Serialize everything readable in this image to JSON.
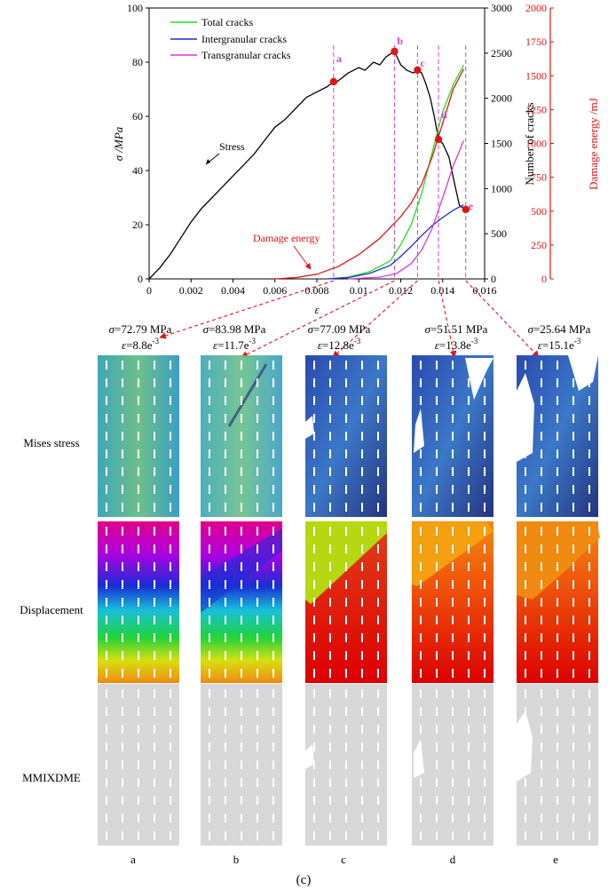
{
  "figure_label": "(c)",
  "chart_data": {
    "type": "line",
    "x_label": "ε",
    "x_range": [
      0,
      0.016
    ],
    "x_ticks": [
      "0",
      "0.002",
      "0.004",
      "0.006",
      "0.008",
      "0.01",
      "0.012",
      "0.014",
      "0.016"
    ],
    "left_axis": {
      "label": "σ /MPa",
      "range": [
        0,
        100
      ],
      "ticks": [
        "0",
        "20",
        "40",
        "60",
        "80",
        "100"
      ]
    },
    "crack_axis": {
      "label": "Number of cracks",
      "range": [
        0,
        3000
      ],
      "ticks": [
        "0",
        "500",
        "1000",
        "1500",
        "2000",
        "2500",
        "3000"
      ]
    },
    "energy_axis": {
      "label": "Damage energy /mJ",
      "range": [
        0,
        2000
      ],
      "ticks": [
        "0",
        "250",
        "500",
        "750",
        "1000",
        "1250",
        "1500",
        "1750",
        "2000"
      ]
    },
    "legend": [
      {
        "name": "Total cracks",
        "color": "#22dd22"
      },
      {
        "name": "Intergranular cracks",
        "color": "#1a2fd6"
      },
      {
        "name": "Transgranular cracks",
        "color": "#d63ad6"
      }
    ],
    "annotations": {
      "stress": "Stress",
      "damage_energy": "Damage energy"
    },
    "series": [
      {
        "name": "Stress",
        "axis": "left",
        "color": "#000000",
        "points": [
          [
            0,
            0
          ],
          [
            0.0005,
            4
          ],
          [
            0.001,
            9
          ],
          [
            0.0015,
            15
          ],
          [
            0.002,
            21
          ],
          [
            0.0025,
            26
          ],
          [
            0.003,
            30
          ],
          [
            0.0035,
            34
          ],
          [
            0.004,
            38
          ],
          [
            0.0045,
            42
          ],
          [
            0.005,
            46
          ],
          [
            0.0055,
            51
          ],
          [
            0.006,
            56
          ],
          [
            0.0065,
            59
          ],
          [
            0.007,
            63
          ],
          [
            0.0075,
            67
          ],
          [
            0.008,
            69
          ],
          [
            0.0085,
            71
          ],
          [
            0.0088,
            72.79
          ],
          [
            0.009,
            73
          ],
          [
            0.0095,
            76
          ],
          [
            0.01,
            78
          ],
          [
            0.0103,
            77
          ],
          [
            0.0107,
            80
          ],
          [
            0.011,
            79
          ],
          [
            0.0113,
            82
          ],
          [
            0.0117,
            83.98
          ],
          [
            0.012,
            79
          ],
          [
            0.0123,
            77
          ],
          [
            0.0126,
            76
          ],
          [
            0.0128,
            77.09
          ],
          [
            0.013,
            76
          ],
          [
            0.0132,
            72
          ],
          [
            0.0134,
            67
          ],
          [
            0.0136,
            60
          ],
          [
            0.0138,
            51.51
          ],
          [
            0.014,
            50
          ],
          [
            0.0143,
            45
          ],
          [
            0.0146,
            34
          ],
          [
            0.0148,
            27
          ],
          [
            0.0151,
            25.64
          ]
        ]
      },
      {
        "name": "Total cracks",
        "axis": "cracks",
        "color": "#22dd22",
        "points": [
          [
            0.0085,
            0
          ],
          [
            0.0095,
            20
          ],
          [
            0.0105,
            80
          ],
          [
            0.0115,
            200
          ],
          [
            0.012,
            380
          ],
          [
            0.0125,
            600
          ],
          [
            0.013,
            950
          ],
          [
            0.0135,
            1400
          ],
          [
            0.014,
            1850
          ],
          [
            0.0145,
            2150
          ],
          [
            0.015,
            2370
          ]
        ]
      },
      {
        "name": "Intergranular cracks",
        "axis": "cracks",
        "color": "#1a2fd6",
        "points": [
          [
            0.0085,
            0
          ],
          [
            0.0095,
            15
          ],
          [
            0.0105,
            60
          ],
          [
            0.0115,
            150
          ],
          [
            0.012,
            250
          ],
          [
            0.0125,
            360
          ],
          [
            0.013,
            480
          ],
          [
            0.0135,
            590
          ],
          [
            0.014,
            680
          ],
          [
            0.0145,
            760
          ],
          [
            0.015,
            820
          ]
        ]
      },
      {
        "name": "Transgranular cracks",
        "axis": "cracks",
        "color": "#d63ad6",
        "points": [
          [
            0.0095,
            0
          ],
          [
            0.011,
            20
          ],
          [
            0.0118,
            60
          ],
          [
            0.0125,
            170
          ],
          [
            0.013,
            320
          ],
          [
            0.0135,
            560
          ],
          [
            0.014,
            900
          ],
          [
            0.0145,
            1250
          ],
          [
            0.015,
            1530
          ]
        ]
      },
      {
        "name": "Damage energy",
        "axis": "energy",
        "color": "#e01515",
        "points": [
          [
            0.006,
            0
          ],
          [
            0.007,
            10
          ],
          [
            0.008,
            35
          ],
          [
            0.009,
            90
          ],
          [
            0.01,
            180
          ],
          [
            0.011,
            300
          ],
          [
            0.012,
            460
          ],
          [
            0.0125,
            560
          ],
          [
            0.013,
            700
          ],
          [
            0.0135,
            900
          ],
          [
            0.014,
            1150
          ],
          [
            0.0145,
            1400
          ],
          [
            0.015,
            1550
          ]
        ]
      }
    ],
    "markers": [
      {
        "label": "a",
        "x": 0.0088,
        "stress": 72.79
      },
      {
        "label": "b",
        "x": 0.0117,
        "stress": 83.98
      },
      {
        "label": "c",
        "x": 0.0128,
        "stress": 77.09
      },
      {
        "label": "d",
        "x": 0.0138,
        "stress": 51.51
      },
      {
        "label": "e",
        "x": 0.0151,
        "stress": 25.64
      }
    ]
  },
  "states": [
    {
      "id": "a",
      "sigma": "72.79 MPa",
      "eps": "8.8e",
      "eps_exp": "-3"
    },
    {
      "id": "b",
      "sigma": "83.98 MPa",
      "eps": "11.7e",
      "eps_exp": "-3"
    },
    {
      "id": "c",
      "sigma": "77.09 MPa",
      "eps": "12.8e",
      "eps_exp": "-3"
    },
    {
      "id": "d",
      "sigma": "51.51 MPa",
      "eps": "13.8e",
      "eps_exp": "-3"
    },
    {
      "id": "e",
      "sigma": "25.64 MPa",
      "eps": "15.1e",
      "eps_exp": "-3"
    }
  ],
  "row_labels": [
    "Mises stress",
    "Displacement",
    "MMIXDME"
  ],
  "colors": {
    "marker": "#e01515",
    "guide": "#cc44cc",
    "arrow": "#e01515"
  }
}
